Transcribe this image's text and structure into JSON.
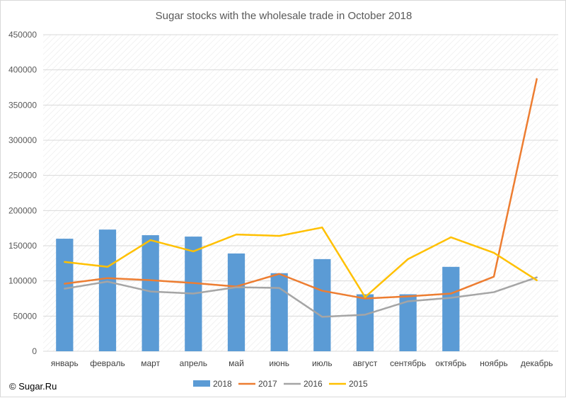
{
  "chart_data": {
    "type": "bar",
    "title": "Sugar stocks with the wholesale trade in October 2018",
    "categories": [
      "январь",
      "февраль",
      "март",
      "апрель",
      "май",
      "июнь",
      "июль",
      "август",
      "сентябрь",
      "октябрь",
      "ноябрь",
      "декабрь"
    ],
    "ylim": [
      0,
      450000
    ],
    "yticks": [
      0,
      50000,
      100000,
      150000,
      200000,
      250000,
      300000,
      350000,
      400000,
      450000
    ],
    "grid": true,
    "legend_position": "bottom",
    "series": [
      {
        "name": "2018",
        "type": "bar",
        "color": "#5b9bd5",
        "values": [
          160000,
          173000,
          165000,
          163000,
          139000,
          111000,
          131000,
          81000,
          81000,
          120000,
          null,
          null
        ]
      },
      {
        "name": "2017",
        "type": "line",
        "color": "#ed7d31",
        "values": [
          96000,
          104000,
          101000,
          97000,
          92000,
          110000,
          86000,
          75000,
          78000,
          82000,
          106000,
          387000
        ]
      },
      {
        "name": "2016",
        "type": "line",
        "color": "#a5a5a5",
        "values": [
          89000,
          99000,
          85000,
          82000,
          91000,
          90000,
          49000,
          52000,
          71000,
          76000,
          84000,
          105000
        ]
      },
      {
        "name": "2015",
        "type": "line",
        "color": "#ffc000",
        "values": [
          127000,
          120000,
          158000,
          142000,
          166000,
          164000,
          176000,
          77000,
          131000,
          162000,
          140000,
          101000
        ]
      }
    ]
  },
  "footer": {
    "copyright": "© Sugar.Ru"
  }
}
